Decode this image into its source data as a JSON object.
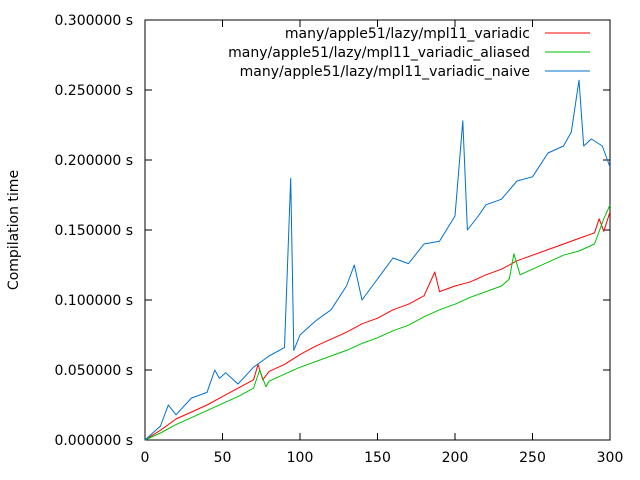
{
  "chart_data": {
    "type": "line",
    "title": "",
    "xlabel": "",
    "ylabel": "Compilation time",
    "xlim": [
      0,
      300
    ],
    "ylim": [
      0,
      0.3
    ],
    "grid": false,
    "legend_position": "top-right",
    "x_ticks": [
      0,
      50,
      100,
      150,
      200,
      250,
      300
    ],
    "x_tick_labels": [
      "0",
      "50",
      "100",
      "150",
      "200",
      "250",
      "300"
    ],
    "y_ticks": [
      0,
      0.05,
      0.1,
      0.15,
      0.2,
      0.25,
      0.3
    ],
    "y_tick_labels": [
      "0.000000 s",
      "0.050000 s",
      "0.100000 s",
      "0.150000 s",
      "0.200000 s",
      "0.250000 s",
      "0.300000 s"
    ],
    "series": [
      {
        "name": "many/apple51/lazy/mpl11_variadic",
        "color": "#ff0000",
        "x": [
          0,
          10,
          20,
          30,
          40,
          50,
          60,
          70,
          73,
          76,
          80,
          90,
          100,
          110,
          120,
          130,
          140,
          150,
          160,
          170,
          180,
          187,
          190,
          200,
          210,
          220,
          230,
          240,
          250,
          260,
          270,
          280,
          290,
          293,
          296,
          300
        ],
        "y": [
          0,
          0.007,
          0.015,
          0.02,
          0.025,
          0.031,
          0.037,
          0.043,
          0.054,
          0.043,
          0.049,
          0.054,
          0.061,
          0.067,
          0.072,
          0.077,
          0.083,
          0.087,
          0.093,
          0.097,
          0.103,
          0.12,
          0.106,
          0.11,
          0.113,
          0.118,
          0.122,
          0.128,
          0.132,
          0.136,
          0.14,
          0.144,
          0.148,
          0.158,
          0.149,
          0.163
        ]
      },
      {
        "name": "many/apple51/lazy/mpl11_variadic_aliased",
        "color": "#00c000",
        "x": [
          0,
          10,
          20,
          30,
          40,
          50,
          60,
          70,
          74,
          78,
          80,
          90,
          100,
          110,
          120,
          130,
          140,
          150,
          160,
          170,
          180,
          190,
          200,
          210,
          220,
          230,
          235,
          238,
          242,
          250,
          260,
          270,
          280,
          290,
          296,
          300
        ],
        "y": [
          0,
          0.005,
          0.011,
          0.016,
          0.021,
          0.026,
          0.031,
          0.037,
          0.05,
          0.038,
          0.042,
          0.047,
          0.052,
          0.056,
          0.06,
          0.064,
          0.069,
          0.073,
          0.078,
          0.082,
          0.088,
          0.093,
          0.097,
          0.102,
          0.106,
          0.11,
          0.115,
          0.133,
          0.118,
          0.122,
          0.127,
          0.132,
          0.135,
          0.14,
          0.158,
          0.168
        ]
      },
      {
        "name": "many/apple51/lazy/mpl11_variadic_naive",
        "color": "#0070d0",
        "x": [
          0,
          10,
          15,
          20,
          30,
          40,
          45,
          48,
          52,
          60,
          70,
          80,
          90,
          94,
          96,
          100,
          110,
          120,
          130,
          135,
          140,
          150,
          160,
          170,
          180,
          190,
          200,
          205,
          208,
          215,
          220,
          230,
          240,
          250,
          260,
          270,
          275,
          280,
          283,
          288,
          295,
          300
        ],
        "y": [
          0,
          0.01,
          0.025,
          0.018,
          0.03,
          0.034,
          0.05,
          0.044,
          0.048,
          0.04,
          0.052,
          0.06,
          0.066,
          0.187,
          0.064,
          0.075,
          0.085,
          0.093,
          0.11,
          0.125,
          0.1,
          0.115,
          0.13,
          0.126,
          0.14,
          0.142,
          0.16,
          0.228,
          0.15,
          0.16,
          0.168,
          0.172,
          0.185,
          0.188,
          0.205,
          0.21,
          0.22,
          0.257,
          0.21,
          0.215,
          0.21,
          0.195
        ]
      }
    ]
  }
}
